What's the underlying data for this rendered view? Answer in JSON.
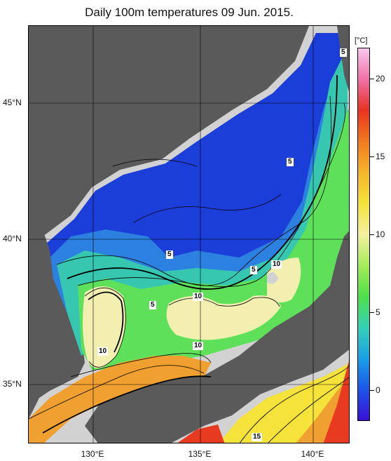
{
  "title": "Daily 100m temperatures 09 Jun. 2015.",
  "unit": "[°C]",
  "latitudes": [
    {
      "label": "45°N"
    },
    {
      "label": "40°N"
    },
    {
      "label": "35°N"
    }
  ],
  "longitudes": [
    {
      "label": "130°E"
    },
    {
      "label": "135°E"
    },
    {
      "label": "140°E"
    }
  ],
  "colorbar": {
    "min": -2,
    "max": 22,
    "ticks": [
      {
        "value": 0,
        "label": "0"
      },
      {
        "value": 5,
        "label": "5"
      },
      {
        "value": 10,
        "label": "10"
      },
      {
        "value": 15,
        "label": "15"
      },
      {
        "value": 20,
        "label": "20"
      }
    ],
    "stops": [
      "#3a0fd6",
      "#1c55e8",
      "#1aa0e6",
      "#35d0b8",
      "#4ee04a",
      "#a6ec5a",
      "#f4f0a0",
      "#f5e23a",
      "#f5b52a",
      "#f07a1e",
      "#e83220",
      "#f070a8",
      "#f8c8ee"
    ]
  },
  "contour_labels": [
    {
      "text": "5"
    },
    {
      "text": "5"
    },
    {
      "text": "5"
    },
    {
      "text": "5"
    },
    {
      "text": "5"
    },
    {
      "text": "10"
    },
    {
      "text": "10"
    },
    {
      "text": "10"
    },
    {
      "text": "10"
    },
    {
      "text": "15"
    }
  ],
  "colors": {
    "land": "#5a5a5a",
    "no_data": "#d2d2d2",
    "cold": "#1c3ed8",
    "cool": "#2c80e0",
    "mild": "#37c6b0",
    "warm": "#5fe05a",
    "warmer": "#f2efb0",
    "hot": "#f0a030",
    "hotter": "#e83a20"
  }
}
